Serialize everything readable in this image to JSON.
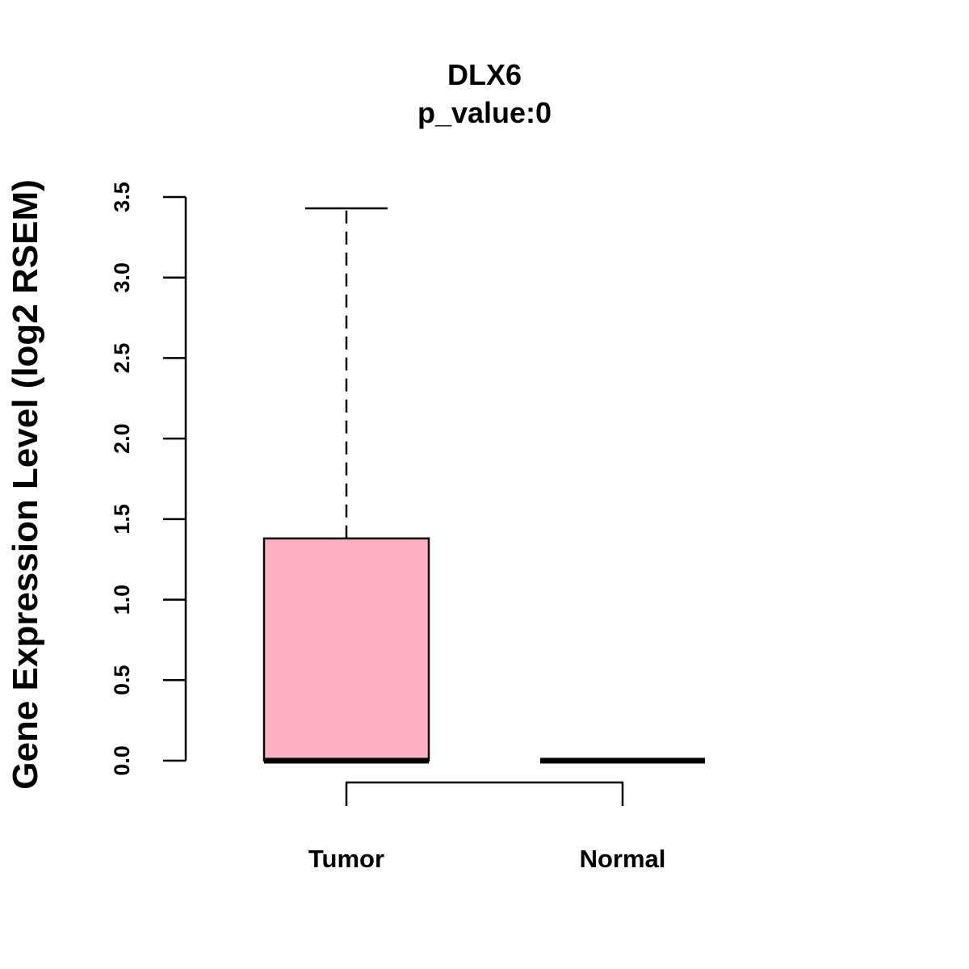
{
  "chart_data": {
    "type": "box",
    "title": "DLX6",
    "subtitle": "p_value:0",
    "xlabel": "",
    "ylabel": "Gene Expression Level (log2 RSEM)",
    "ylim": [
      0,
      3.5
    ],
    "yticks": [
      "0.0",
      "0.5",
      "1.0",
      "1.5",
      "2.0",
      "2.5",
      "3.0",
      "3.5"
    ],
    "categories": [
      "Tumor",
      "Normal"
    ],
    "boxes": [
      {
        "name": "Tumor",
        "min": 0,
        "q1": 0,
        "median": 0,
        "q3": 1.38,
        "max": 3.43,
        "color": "#FFB0C3"
      },
      {
        "name": "Normal",
        "min": 0,
        "q1": 0,
        "median": 0,
        "q3": 0,
        "max": 0,
        "color": "#FFB0C3"
      }
    ],
    "comparison_bracket": [
      "Tumor",
      "Normal"
    ],
    "grid": false
  }
}
